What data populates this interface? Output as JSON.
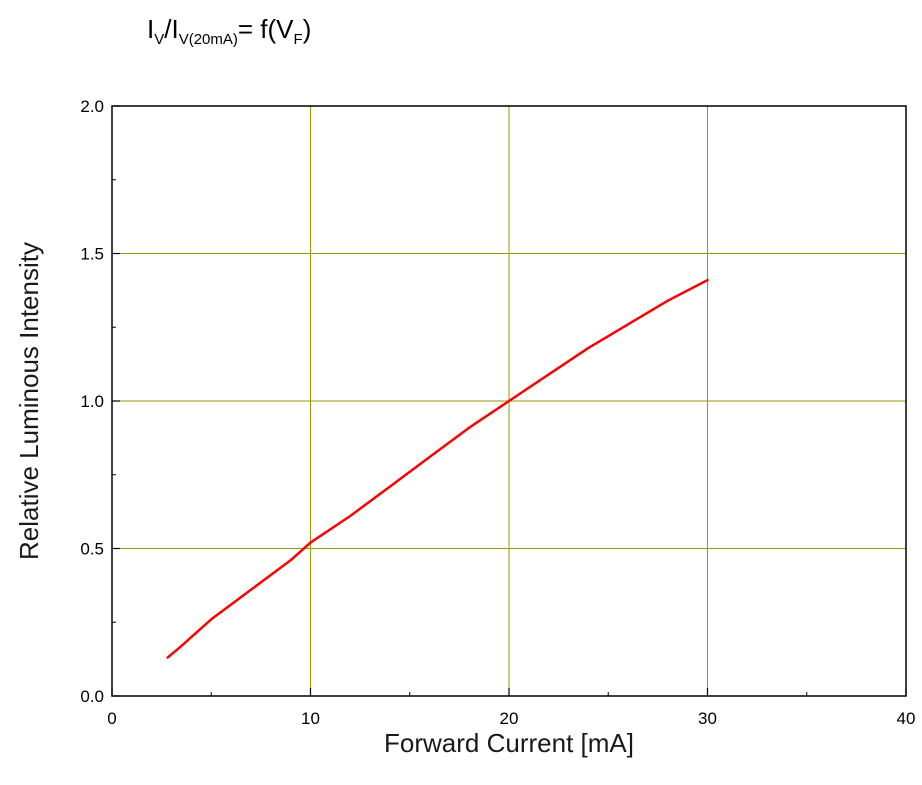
{
  "chart_data": {
    "type": "line",
    "title": {
      "part1": "I",
      "sub1": "V",
      "part2": "/I",
      "sub2": "V(20mA)",
      "part3": "= f(V",
      "sub3": "F",
      "part4": ")"
    },
    "xlabel": "Forward Current [mA]",
    "ylabel": "Relative Luminous Intensity",
    "xlim": [
      0,
      40
    ],
    "ylim": [
      0,
      2.0
    ],
    "x_ticks": [
      0,
      10,
      20,
      30,
      40
    ],
    "x_tick_labels": [
      "0",
      "10",
      "20",
      "30",
      "40"
    ],
    "y_ticks": [
      0,
      0.5,
      1.0,
      1.5,
      2.0
    ],
    "y_tick_labels": [
      "0.0",
      "0.5",
      "1.0",
      "1.5",
      "2.0"
    ],
    "grid": true,
    "grid_color": "#999900",
    "series": [
      {
        "color": "#ff0000",
        "x": [
          2.8,
          3.5,
          4.0,
          5.0,
          6.0,
          7.0,
          8.0,
          9.0,
          10.0,
          12.0,
          14.0,
          16.0,
          18.0,
          20.0,
          22.0,
          24.0,
          26.0,
          28.0,
          30.0
        ],
        "y": [
          0.13,
          0.17,
          0.2,
          0.26,
          0.31,
          0.36,
          0.41,
          0.46,
          0.52,
          0.61,
          0.71,
          0.81,
          0.91,
          1.0,
          1.09,
          1.18,
          1.26,
          1.34,
          1.41
        ]
      }
    ]
  }
}
